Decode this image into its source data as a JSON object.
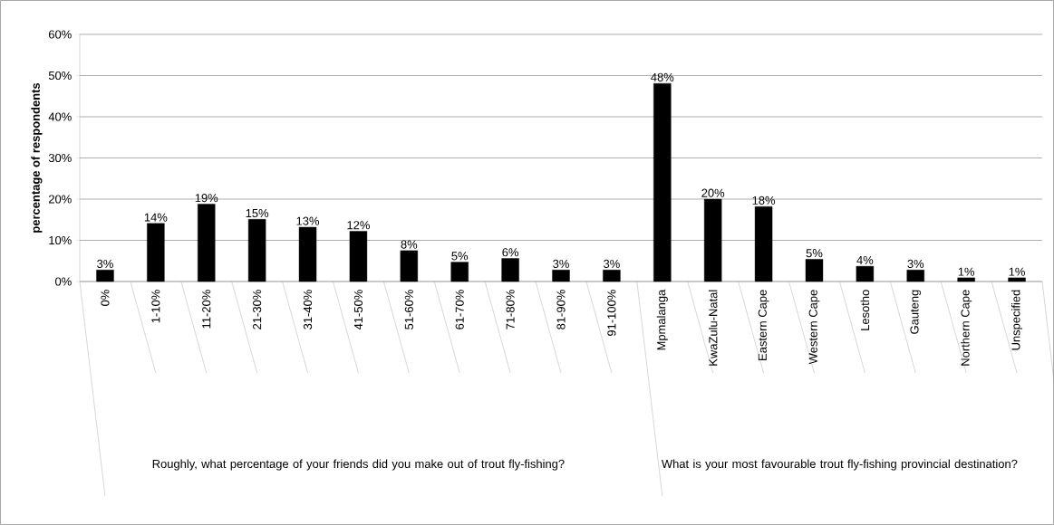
{
  "chart_data": {
    "type": "bar",
    "ylabel": "percentage of respondents",
    "categories": [
      "0%",
      "1-10%",
      "11-20%",
      "21-30%",
      "31-40%",
      "41-50%",
      "51-60%",
      "61-70%",
      "71-80%",
      "81-90%",
      "91-100%",
      "Mpmalanga",
      "KwaZulu-Natal",
      "Eastern Cape",
      "Western Cape",
      "Lesotho",
      "Gauteng",
      "Northern Cape",
      "Unspecified"
    ],
    "values": [
      2.8,
      14.1,
      18.8,
      15.1,
      13.2,
      12.2,
      7.5,
      4.7,
      5.6,
      2.8,
      2.8,
      48.1,
      20.0,
      18.2,
      5.4,
      3.7,
      2.8,
      0.9,
      0.9
    ],
    "value_labels": [
      "3%",
      "14%",
      "19%",
      "15%",
      "13%",
      "12%",
      "8%",
      "5%",
      "6%",
      "3%",
      "3%",
      "48%",
      "20%",
      "18%",
      "5%",
      "4%",
      "3%",
      "1%",
      "1%"
    ],
    "color": "#000000",
    "ylim": [
      0,
      60
    ],
    "yticks": [
      {
        "value": 0,
        "label": "0%"
      },
      {
        "value": 10,
        "label": "10%"
      },
      {
        "value": 20,
        "label": "20%"
      },
      {
        "value": 30,
        "label": "30%"
      },
      {
        "value": 40,
        "label": "40%"
      },
      {
        "value": 50,
        "label": "50%"
      },
      {
        "value": 60,
        "label": "60%"
      }
    ],
    "grid": "y",
    "annotations": [
      "Roughly, what percentage of your friends did you make out of trout fly-fishing?",
      "What is your most favourable trout fly-fishing provincial destination?"
    ]
  }
}
